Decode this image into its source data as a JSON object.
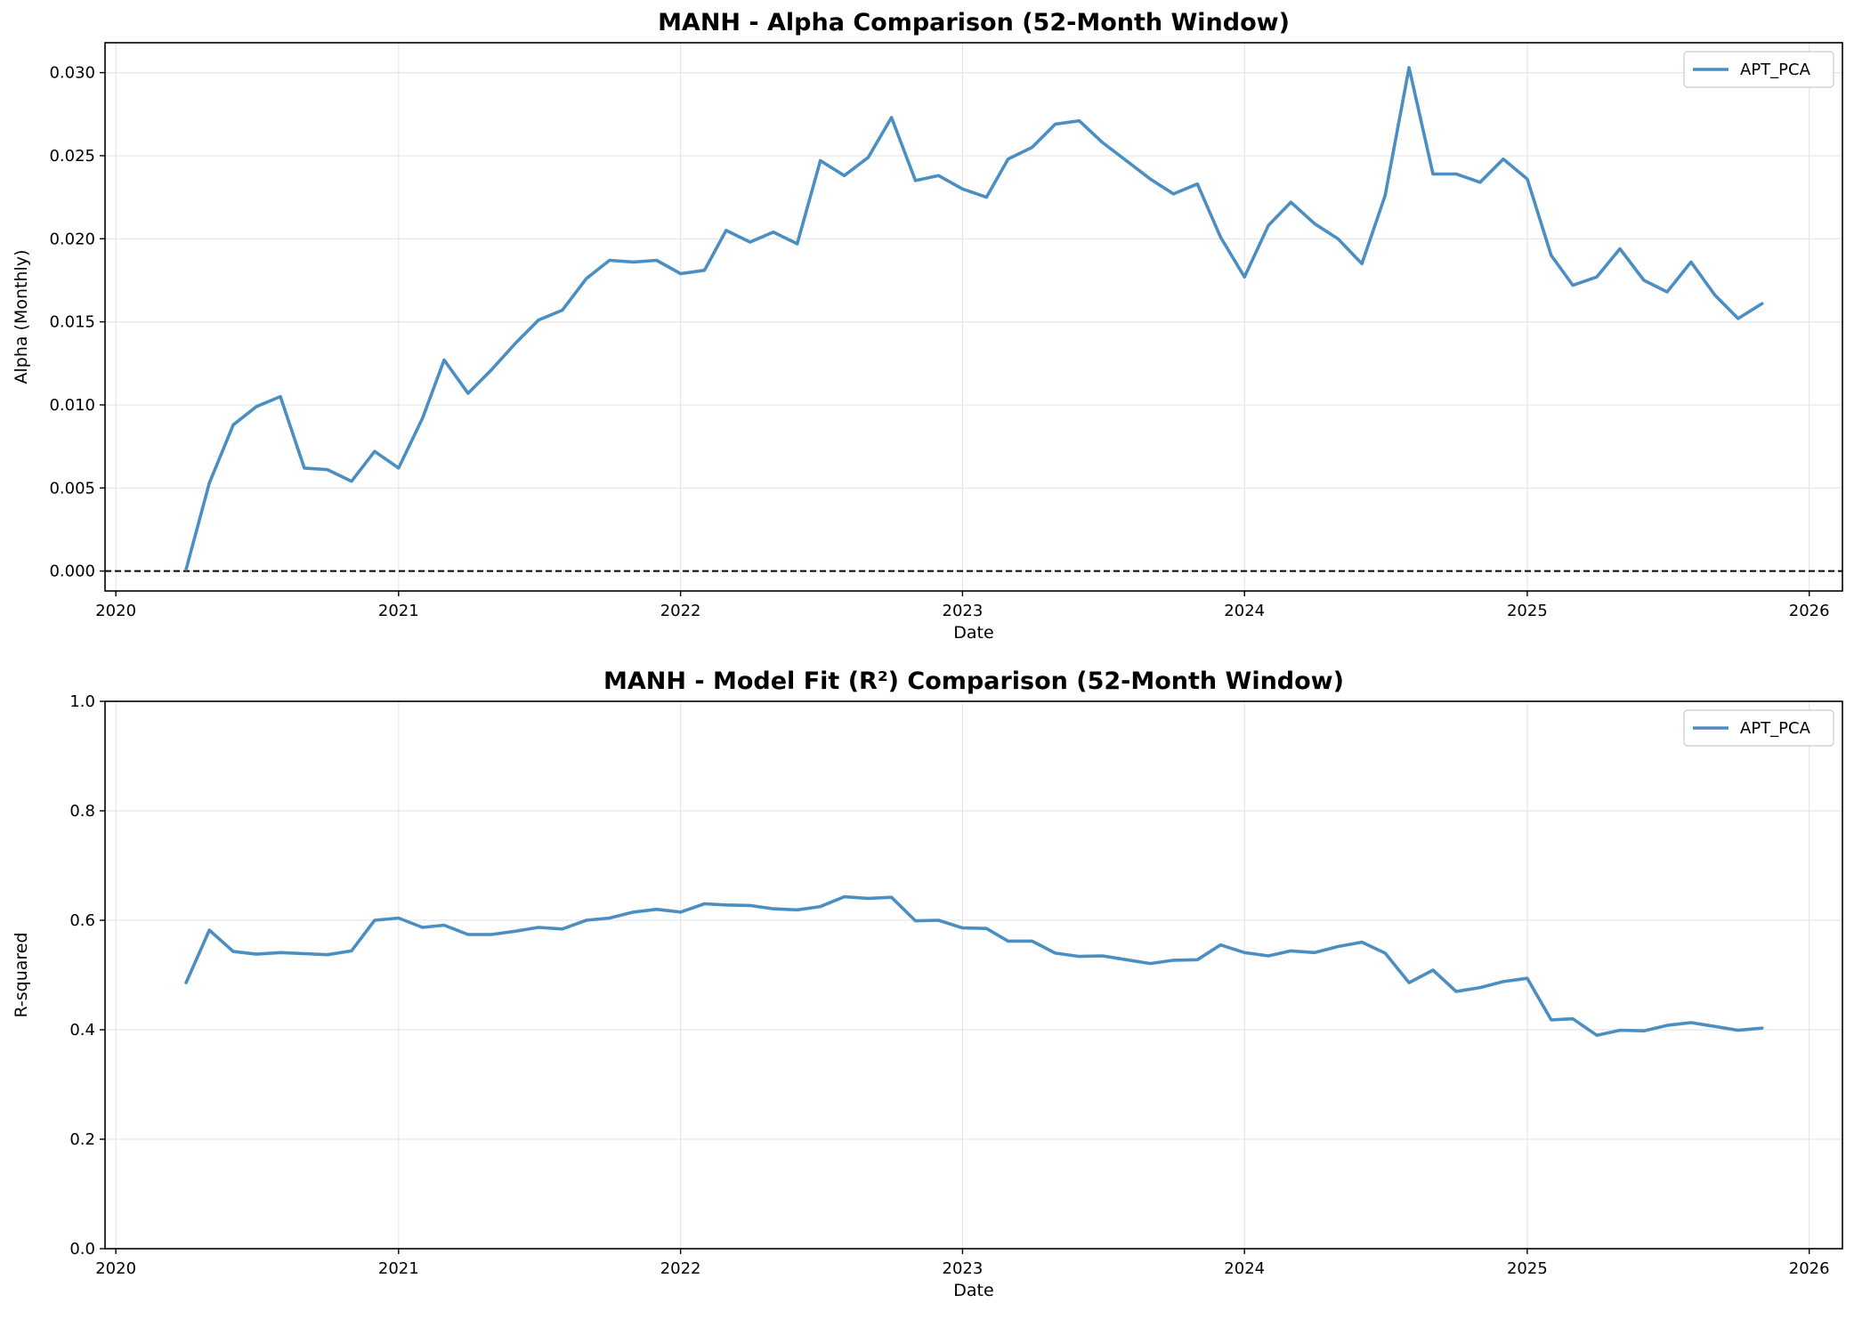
{
  "chart_data": [
    {
      "type": "line",
      "title": "MANH - Alpha Comparison (52-Month Window)",
      "xlabel": "Date",
      "ylabel": "Alpha (Monthly)",
      "xlim": [
        "2019-12-18",
        "2026-02-13"
      ],
      "ylim": [
        -0.0012,
        0.0318
      ],
      "x_ticks": [
        "2020",
        "2021",
        "2022",
        "2023",
        "2024",
        "2025",
        "2026"
      ],
      "y_ticks": [
        "0.000",
        "0.005",
        "0.010",
        "0.015",
        "0.020",
        "0.025",
        "0.030"
      ],
      "grid": true,
      "legend": "top-right",
      "reference_line": {
        "y": 0,
        "style": "dashed",
        "color": "#000000"
      },
      "series": [
        {
          "name": "APT_PCA",
          "color": "#4a8ec2",
          "points": [
            [
              "2020-04-01",
              0.0001
            ],
            [
              "2020-05-01",
              0.0053
            ],
            [
              "2020-06-01",
              0.0088
            ],
            [
              "2020-07-01",
              0.0099
            ],
            [
              "2020-08-01",
              0.0105
            ],
            [
              "2020-09-01",
              0.0062
            ],
            [
              "2020-10-01",
              0.0061
            ],
            [
              "2020-11-01",
              0.0054
            ],
            [
              "2020-12-01",
              0.0072
            ],
            [
              "2021-01-01",
              0.0062
            ],
            [
              "2021-02-01",
              0.0092
            ],
            [
              "2021-03-01",
              0.0127
            ],
            [
              "2021-04-01",
              0.0107
            ],
            [
              "2021-05-01",
              0.0121
            ],
            [
              "2021-06-01",
              0.0137
            ],
            [
              "2021-07-01",
              0.0151
            ],
            [
              "2021-08-01",
              0.0157
            ],
            [
              "2021-09-01",
              0.0176
            ],
            [
              "2021-10-01",
              0.0187
            ],
            [
              "2021-11-01",
              0.0186
            ],
            [
              "2021-12-01",
              0.0187
            ],
            [
              "2022-01-01",
              0.0179
            ],
            [
              "2022-02-01",
              0.0181
            ],
            [
              "2022-03-01",
              0.0205
            ],
            [
              "2022-04-01",
              0.0198
            ],
            [
              "2022-05-01",
              0.0204
            ],
            [
              "2022-06-01",
              0.0197
            ],
            [
              "2022-07-01",
              0.0247
            ],
            [
              "2022-08-01",
              0.0238
            ],
            [
              "2022-09-01",
              0.0249
            ],
            [
              "2022-10-01",
              0.0273
            ],
            [
              "2022-11-01",
              0.0235
            ],
            [
              "2022-12-01",
              0.0238
            ],
            [
              "2023-01-01",
              0.023
            ],
            [
              "2023-02-01",
              0.0225
            ],
            [
              "2023-03-01",
              0.0248
            ],
            [
              "2023-04-01",
              0.0255
            ],
            [
              "2023-05-01",
              0.0269
            ],
            [
              "2023-06-01",
              0.0271
            ],
            [
              "2023-07-01",
              0.0258
            ],
            [
              "2023-08-01",
              0.0247
            ],
            [
              "2023-09-01",
              0.0236
            ],
            [
              "2023-10-01",
              0.0227
            ],
            [
              "2023-11-01",
              0.0233
            ],
            [
              "2023-12-01",
              0.0201
            ],
            [
              "2024-01-01",
              0.0177
            ],
            [
              "2024-02-01",
              0.0208
            ],
            [
              "2024-03-01",
              0.0222
            ],
            [
              "2024-04-01",
              0.0209
            ],
            [
              "2024-05-01",
              0.02
            ],
            [
              "2024-06-01",
              0.0185
            ],
            [
              "2024-07-01",
              0.0226
            ],
            [
              "2024-08-01",
              0.0303
            ],
            [
              "2024-09-01",
              0.0239
            ],
            [
              "2024-10-01",
              0.0239
            ],
            [
              "2024-11-01",
              0.0234
            ],
            [
              "2024-12-01",
              0.0248
            ],
            [
              "2025-01-01",
              0.0236
            ],
            [
              "2025-02-01",
              0.019
            ],
            [
              "2025-03-01",
              0.0172
            ],
            [
              "2025-04-01",
              0.0177
            ],
            [
              "2025-05-01",
              0.0194
            ],
            [
              "2025-06-01",
              0.0175
            ],
            [
              "2025-07-01",
              0.0168
            ],
            [
              "2025-08-01",
              0.0186
            ],
            [
              "2025-09-01",
              0.0166
            ],
            [
              "2025-10-01",
              0.0152
            ],
            [
              "2025-11-01",
              0.0161
            ]
          ]
        }
      ]
    },
    {
      "type": "line",
      "title": "MANH - Model Fit (R²) Comparison (52-Month Window)",
      "xlabel": "Date",
      "ylabel": "R-squared",
      "xlim": [
        "2019-12-18",
        "2026-02-13"
      ],
      "ylim": [
        0,
        1
      ],
      "x_ticks": [
        "2020",
        "2021",
        "2022",
        "2023",
        "2024",
        "2025",
        "2026"
      ],
      "y_ticks": [
        "0.0",
        "0.2",
        "0.4",
        "0.6",
        "0.8",
        "1.0"
      ],
      "grid": true,
      "legend": "top-right",
      "series": [
        {
          "name": "APT_PCA",
          "color": "#4a8ec2",
          "points": [
            [
              "2020-04-01",
              0.486
            ],
            [
              "2020-05-01",
              0.582
            ],
            [
              "2020-06-01",
              0.543
            ],
            [
              "2020-07-01",
              0.538
            ],
            [
              "2020-08-01",
              0.541
            ],
            [
              "2020-09-01",
              0.539
            ],
            [
              "2020-10-01",
              0.537
            ],
            [
              "2020-11-01",
              0.544
            ],
            [
              "2020-12-01",
              0.6
            ],
            [
              "2021-01-01",
              0.604
            ],
            [
              "2021-02-01",
              0.587
            ],
            [
              "2021-03-01",
              0.591
            ],
            [
              "2021-04-01",
              0.574
            ],
            [
              "2021-05-01",
              0.574
            ],
            [
              "2021-06-01",
              0.58
            ],
            [
              "2021-07-01",
              0.587
            ],
            [
              "2021-08-01",
              0.584
            ],
            [
              "2021-09-01",
              0.6
            ],
            [
              "2021-10-01",
              0.604
            ],
            [
              "2021-11-01",
              0.615
            ],
            [
              "2021-12-01",
              0.62
            ],
            [
              "2022-01-01",
              0.615
            ],
            [
              "2022-02-01",
              0.63
            ],
            [
              "2022-03-01",
              0.628
            ],
            [
              "2022-04-01",
              0.627
            ],
            [
              "2022-05-01",
              0.621
            ],
            [
              "2022-06-01",
              0.619
            ],
            [
              "2022-07-01",
              0.625
            ],
            [
              "2022-08-01",
              0.643
            ],
            [
              "2022-09-01",
              0.64
            ],
            [
              "2022-10-01",
              0.642
            ],
            [
              "2022-11-01",
              0.599
            ],
            [
              "2022-12-01",
              0.6
            ],
            [
              "2023-01-01",
              0.586
            ],
            [
              "2023-02-01",
              0.585
            ],
            [
              "2023-03-01",
              0.562
            ],
            [
              "2023-04-01",
              0.562
            ],
            [
              "2023-05-01",
              0.54
            ],
            [
              "2023-06-01",
              0.534
            ],
            [
              "2023-07-01",
              0.535
            ],
            [
              "2023-08-01",
              0.528
            ],
            [
              "2023-09-01",
              0.521
            ],
            [
              "2023-10-01",
              0.527
            ],
            [
              "2023-11-01",
              0.528
            ],
            [
              "2023-12-01",
              0.555
            ],
            [
              "2024-01-01",
              0.541
            ],
            [
              "2024-02-01",
              0.535
            ],
            [
              "2024-03-01",
              0.544
            ],
            [
              "2024-04-01",
              0.541
            ],
            [
              "2024-05-01",
              0.552
            ],
            [
              "2024-06-01",
              0.56
            ],
            [
              "2024-07-01",
              0.54
            ],
            [
              "2024-08-01",
              0.486
            ],
            [
              "2024-09-01",
              0.509
            ],
            [
              "2024-10-01",
              0.47
            ],
            [
              "2024-11-01",
              0.477
            ],
            [
              "2024-12-01",
              0.488
            ],
            [
              "2025-01-01",
              0.494
            ],
            [
              "2025-02-01",
              0.418
            ],
            [
              "2025-03-01",
              0.42
            ],
            [
              "2025-04-01",
              0.39
            ],
            [
              "2025-05-01",
              0.399
            ],
            [
              "2025-06-01",
              0.398
            ],
            [
              "2025-07-01",
              0.408
            ],
            [
              "2025-08-01",
              0.413
            ],
            [
              "2025-09-01",
              0.406
            ],
            [
              "2025-10-01",
              0.399
            ],
            [
              "2025-11-01",
              0.403
            ]
          ]
        }
      ]
    }
  ]
}
